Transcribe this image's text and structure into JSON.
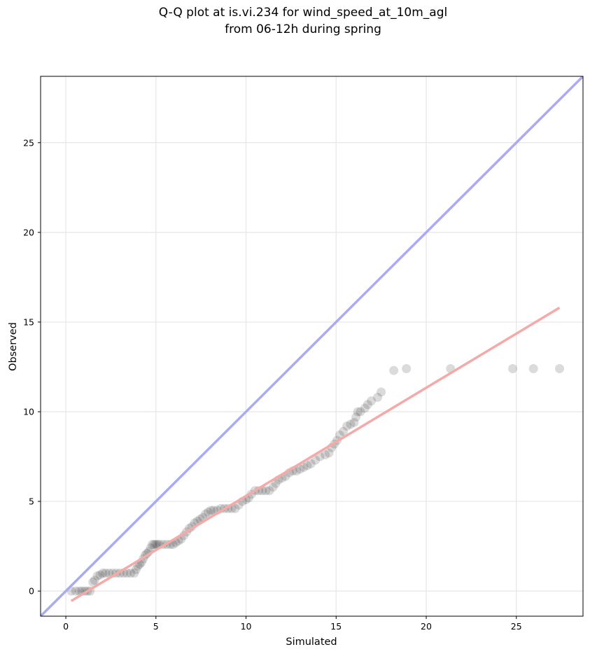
{
  "chart_data": {
    "type": "scatter",
    "title": "Q-Q plot at is.vi.234 for wind_speed_at_10m_agl",
    "subtitle": "from 06-12h during spring",
    "xlabel": "Simulated",
    "ylabel": "Observed",
    "xlim": [
      -1.4,
      28.7
    ],
    "ylim": [
      -1.4,
      28.7
    ],
    "xticks": [
      0,
      5,
      10,
      15,
      20,
      25
    ],
    "yticks": [
      0,
      5,
      10,
      15,
      20,
      25
    ],
    "grid": true,
    "reference_line": {
      "label": "",
      "from": [
        -1.4,
        -1.4
      ],
      "to": [
        28.7,
        28.7
      ],
      "color": "#aaaaf5"
    },
    "fit_line": {
      "label": "",
      "from": [
        0.3,
        -0.55
      ],
      "to": [
        27.4,
        15.8
      ],
      "color": "#f5aaaa"
    },
    "points": {
      "color": "#222222",
      "x": [
        0.3,
        0.55,
        0.75,
        0.9,
        1.05,
        1.2,
        1.35,
        1.5,
        1.6,
        1.75,
        1.9,
        2.05,
        2.2,
        2.4,
        2.6,
        2.8,
        3.0,
        3.2,
        3.4,
        3.6,
        3.8,
        3.9,
        4.0,
        4.1,
        4.2,
        4.3,
        4.4,
        4.5,
        4.6,
        4.7,
        4.8,
        4.9,
        5.0,
        5.1,
        5.2,
        5.4,
        5.6,
        5.8,
        5.95,
        6.1,
        6.25,
        6.4,
        6.55,
        6.7,
        6.85,
        7.0,
        7.15,
        7.3,
        7.45,
        7.6,
        7.75,
        7.9,
        8.05,
        8.2,
        8.4,
        8.6,
        8.8,
        9.0,
        9.2,
        9.4,
        9.6,
        9.8,
        10.0,
        10.15,
        10.3,
        10.5,
        10.7,
        10.9,
        11.1,
        11.3,
        11.5,
        11.65,
        11.8,
        12.0,
        12.2,
        12.4,
        12.6,
        12.8,
        13.0,
        13.2,
        13.4,
        13.6,
        13.85,
        14.1,
        14.4,
        14.6,
        14.75,
        14.9,
        15.05,
        15.2,
        15.4,
        15.6,
        15.8,
        16.0,
        16.1,
        16.2,
        16.35,
        16.6,
        16.75,
        16.95,
        17.3,
        17.5,
        18.2,
        18.9,
        21.35,
        24.8,
        25.95,
        27.4
      ],
      "y": [
        0.0,
        0.0,
        0.0,
        0.0,
        0.0,
        0.0,
        0.0,
        0.5,
        0.6,
        0.85,
        0.9,
        1.0,
        1.0,
        1.0,
        1.0,
        1.0,
        1.0,
        1.0,
        1.0,
        1.0,
        1.0,
        1.2,
        1.4,
        1.5,
        1.6,
        1.8,
        2.0,
        2.1,
        2.2,
        2.4,
        2.6,
        2.6,
        2.6,
        2.6,
        2.6,
        2.6,
        2.6,
        2.6,
        2.6,
        2.7,
        2.8,
        2.9,
        3.1,
        3.3,
        3.5,
        3.6,
        3.8,
        3.9,
        4.0,
        4.1,
        4.3,
        4.4,
        4.5,
        4.5,
        4.5,
        4.6,
        4.6,
        4.6,
        4.6,
        4.6,
        4.8,
        5.0,
        5.1,
        5.2,
        5.4,
        5.6,
        5.6,
        5.6,
        5.6,
        5.6,
        5.8,
        6.0,
        6.2,
        6.3,
        6.4,
        6.6,
        6.7,
        6.7,
        6.8,
        6.9,
        7.0,
        7.1,
        7.3,
        7.5,
        7.6,
        7.7,
        8.0,
        8.2,
        8.4,
        8.7,
        8.9,
        9.2,
        9.3,
        9.4,
        9.7,
        10.0,
        10.0,
        10.2,
        10.4,
        10.6,
        10.8,
        11.1,
        12.3,
        12.4,
        12.4,
        12.4,
        12.4,
        12.4
      ]
    }
  }
}
